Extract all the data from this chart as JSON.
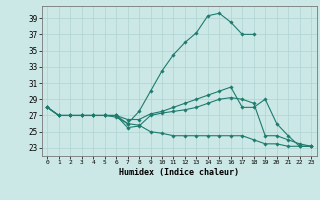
{
  "title": "",
  "xlabel": "Humidex (Indice chaleur)",
  "ylabel": "",
  "background_color": "#cce8e6",
  "grid_color": "#afd4d2",
  "line_color": "#1e7b6e",
  "x_ticks": [
    0,
    1,
    2,
    3,
    4,
    5,
    6,
    7,
    8,
    9,
    10,
    11,
    12,
    13,
    14,
    15,
    16,
    17,
    18,
    19,
    20,
    21,
    22,
    23
  ],
  "y_ticks": [
    23,
    25,
    27,
    29,
    31,
    33,
    35,
    37,
    39
  ],
  "xlim": [
    -0.5,
    23.5
  ],
  "ylim": [
    22.0,
    40.5
  ],
  "series": [
    {
      "x": [
        0,
        1,
        2,
        3,
        4,
        5,
        6,
        7,
        8,
        9,
        10,
        11,
        12,
        13,
        14,
        15,
        16,
        17,
        18
      ],
      "y": [
        28.0,
        27.0,
        27.0,
        27.0,
        27.0,
        27.0,
        27.0,
        26.0,
        27.5,
        30.0,
        32.5,
        34.5,
        36.0,
        37.2,
        39.3,
        39.6,
        38.5,
        37.0,
        37.0
      ]
    },
    {
      "x": [
        0,
        1,
        2,
        3,
        4,
        5,
        6,
        7,
        8,
        9,
        10,
        11,
        12,
        13,
        14,
        15,
        16,
        17,
        18,
        19,
        20,
        21,
        22,
        23
      ],
      "y": [
        28.0,
        27.0,
        27.0,
        27.0,
        27.0,
        27.0,
        27.0,
        26.5,
        26.5,
        27.2,
        27.5,
        28.0,
        28.5,
        29.0,
        29.5,
        30.0,
        30.5,
        28.0,
        28.0,
        29.0,
        26.0,
        24.5,
        23.2,
        23.2
      ]
    },
    {
      "x": [
        0,
        1,
        2,
        3,
        4,
        5,
        6,
        7,
        8,
        9,
        10,
        11,
        12,
        13,
        14,
        15,
        16,
        17,
        18,
        19,
        20,
        21,
        22,
        23
      ],
      "y": [
        28.0,
        27.0,
        27.0,
        27.0,
        27.0,
        27.0,
        27.0,
        25.5,
        25.7,
        27.0,
        27.3,
        27.5,
        27.7,
        28.0,
        28.5,
        29.0,
        29.2,
        29.0,
        28.5,
        24.5,
        24.5,
        24.0,
        23.5,
        23.2
      ]
    },
    {
      "x": [
        0,
        1,
        2,
        3,
        4,
        5,
        6,
        7,
        8,
        9,
        10,
        11,
        12,
        13,
        14,
        15,
        16,
        17,
        18,
        19,
        20,
        21,
        22,
        23
      ],
      "y": [
        28.0,
        27.0,
        27.0,
        27.0,
        27.0,
        27.0,
        26.8,
        26.0,
        25.8,
        25.0,
        24.8,
        24.5,
        24.5,
        24.5,
        24.5,
        24.5,
        24.5,
        24.5,
        24.0,
        23.5,
        23.5,
        23.2,
        23.2,
        23.2
      ]
    }
  ]
}
